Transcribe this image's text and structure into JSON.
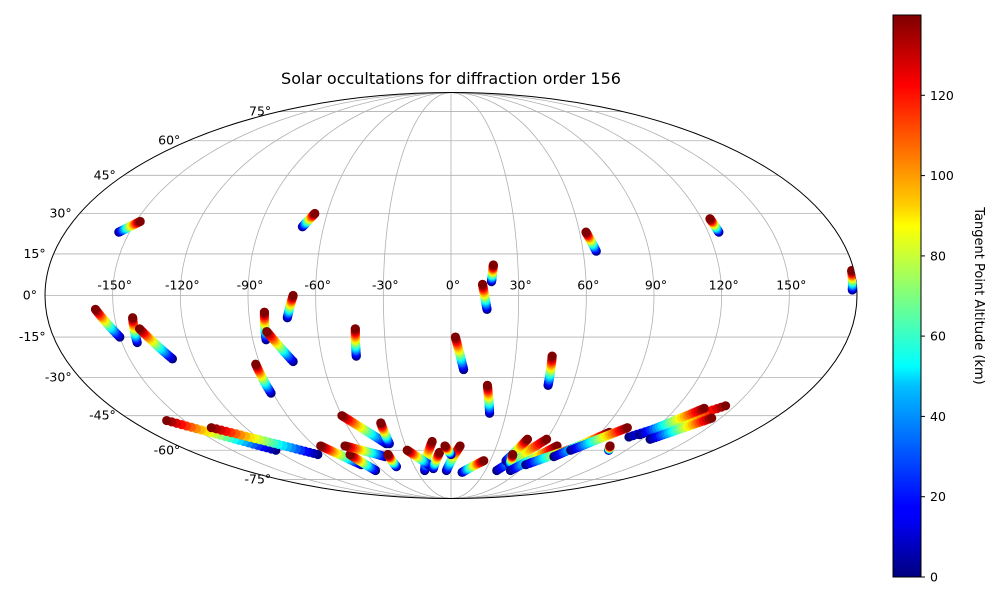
{
  "chart_data": {
    "type": "scatter",
    "projection": "mollweide",
    "title": "Solar occultations for diffraction order 156",
    "xlabel": "",
    "ylabel": "",
    "grid": true,
    "lon_ticks": [
      -150,
      -120,
      -90,
      -60,
      -30,
      0,
      30,
      60,
      90,
      120,
      150
    ],
    "lon_tick_labels": [
      "-150°",
      "-120°",
      "-90°",
      "-60°",
      "-30°",
      "0°",
      "30°",
      "60°",
      "90°",
      "120°",
      "150°"
    ],
    "lat_ticks": [
      75,
      60,
      45,
      30,
      15,
      0,
      -15,
      -30,
      -45,
      -60,
      -75
    ],
    "lat_tick_labels": [
      "75°",
      "60°",
      "45°",
      "30°",
      "15°",
      "0°",
      "-15°",
      "-30°",
      "-45°",
      "-60°",
      "-75°"
    ],
    "colorbar": {
      "label": "Tangent Point Altitude (km)",
      "min": 0,
      "max": 140,
      "ticks": [
        0,
        20,
        40,
        60,
        80,
        100,
        120
      ],
      "tick_labels": [
        "0",
        "20",
        "40",
        "60",
        "80",
        "100",
        "120"
      ],
      "colormap": "jet"
    },
    "tracks": [
      {
        "lon_start": -155,
        "lat_start": 23,
        "lon_end": -148,
        "lat_end": 27
      },
      {
        "lon_start": -70,
        "lat_start": 25,
        "lon_end": -66,
        "lat_end": 30
      },
      {
        "lon_start": 66,
        "lat_start": 16,
        "lon_end": 63,
        "lat_end": 23
      },
      {
        "lon_start": 125,
        "lat_start": 23,
        "lon_end": 124,
        "lat_end": 28
      },
      {
        "lon_start": 178,
        "lat_start": 2,
        "lon_end": 179,
        "lat_end": 9
      },
      {
        "lon_start": 18,
        "lat_start": 5,
        "lon_end": 19,
        "lat_end": 11
      },
      {
        "lon_start": 16,
        "lat_start": -5,
        "lon_end": 14,
        "lat_end": 4
      },
      {
        "lon_start": -150,
        "lat_start": -15,
        "lon_end": -158,
        "lat_end": -5
      },
      {
        "lon_start": -143,
        "lat_start": -17,
        "lon_end": -142,
        "lat_end": -8
      },
      {
        "lon_start": -130,
        "lat_start": -23,
        "lon_end": -140,
        "lat_end": -12
      },
      {
        "lon_start": -84,
        "lat_start": -16,
        "lon_end": -83,
        "lat_end": -6
      },
      {
        "lon_start": -74,
        "lat_start": -24,
        "lon_end": -83,
        "lat_end": -13
      },
      {
        "lon_start": -73,
        "lat_start": -8,
        "lon_end": -70,
        "lat_end": 0
      },
      {
        "lon_start": -91,
        "lat_start": -36,
        "lon_end": -92,
        "lat_end": -25
      },
      {
        "lon_start": -44,
        "lat_start": -22,
        "lon_end": -43,
        "lat_end": -12
      },
      {
        "lon_start": 6,
        "lat_start": -27,
        "lon_end": 2,
        "lat_end": -15
      },
      {
        "lon_start": 21,
        "lat_start": -44,
        "lon_end": 18,
        "lat_end": -33
      },
      {
        "lon_start": 48,
        "lat_start": -33,
        "lon_end": 47,
        "lat_end": -22
      },
      {
        "lon_start": -120,
        "lat_start": -60,
        "lon_end": -160,
        "lat_end": -47
      },
      {
        "lon_start": -95,
        "lat_start": -62,
        "lon_end": -140,
        "lat_end": -50
      },
      {
        "lon_start": -72,
        "lat_start": -67,
        "lon_end": -86,
        "lat_end": -58
      },
      {
        "lon_start": -66,
        "lat_start": -70,
        "lon_end": -72,
        "lat_end": -62
      },
      {
        "lon_start": -48,
        "lat_start": -63,
        "lon_end": -70,
        "lat_end": -58
      },
      {
        "lon_start": -42,
        "lat_start": -57,
        "lon_end": -60,
        "lat_end": -45
      },
      {
        "lon_start": -40,
        "lat_start": -57,
        "lon_end": -40,
        "lat_end": -48
      },
      {
        "lon_start": -45,
        "lat_start": -68,
        "lon_end": -45,
        "lat_end": -62
      },
      {
        "lon_start": -23,
        "lat_start": -70,
        "lon_end": -12,
        "lat_end": -56
      },
      {
        "lon_start": -18,
        "lat_start": -67,
        "lon_end": -30,
        "lat_end": -60
      },
      {
        "lon_start": -15,
        "lat_start": -69,
        "lon_end": -8,
        "lat_end": -61
      },
      {
        "lon_start": -4,
        "lat_start": -70,
        "lon_end": 6,
        "lat_end": -58
      },
      {
        "lon_start": 0,
        "lat_start": -62,
        "lon_end": -4,
        "lat_end": -58
      },
      {
        "lon_start": 10,
        "lat_start": -71,
        "lon_end": 25,
        "lat_end": -65
      },
      {
        "lon_start": 40,
        "lat_start": -70,
        "lon_end": 60,
        "lat_end": -55
      },
      {
        "lon_start": 42,
        "lat_start": -65,
        "lon_end": 48,
        "lat_end": -55
      },
      {
        "lon_start": 47,
        "lat_start": -67,
        "lon_end": 44,
        "lat_end": -62
      },
      {
        "lon_start": 52,
        "lat_start": -70,
        "lon_end": 70,
        "lat_end": -58
      },
      {
        "lon_start": 60,
        "lat_start": -67,
        "lon_end": 85,
        "lat_end": -58
      },
      {
        "lon_start": 75,
        "lat_start": -63,
        "lon_end": 95,
        "lat_end": -52
      },
      {
        "lon_start": 82,
        "lat_start": -60,
        "lon_end": 103,
        "lat_end": -50
      },
      {
        "lon_start": 110,
        "lat_start": -54,
        "lon_end": 145,
        "lat_end": -41
      },
      {
        "lon_start": 115,
        "lat_start": -53,
        "lon_end": 135,
        "lat_end": -42
      },
      {
        "lon_start": 125,
        "lat_start": -55,
        "lon_end": 145,
        "lat_end": -46
      },
      {
        "lon_start": 108,
        "lat_start": -60,
        "lon_end": 105,
        "lat_end": -58
      }
    ]
  }
}
